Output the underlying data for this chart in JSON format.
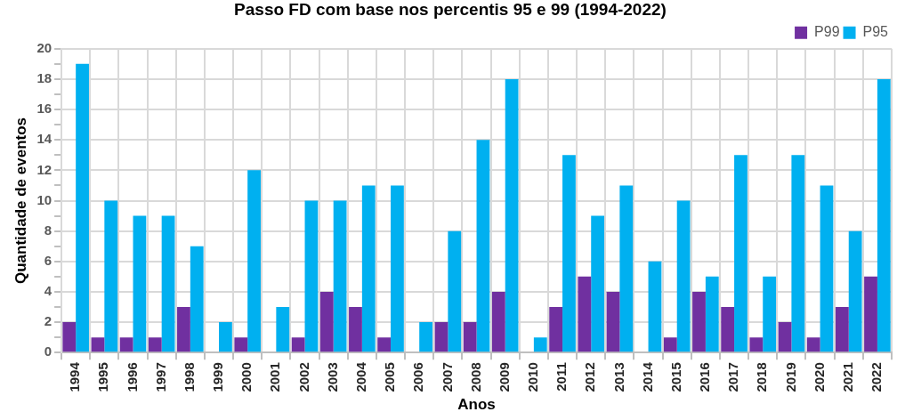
{
  "chart_data": {
    "type": "bar",
    "title": "Passo FD com base nos percentis 95 e 99 (1994-2022)",
    "xlabel": "Anos",
    "ylabel": "Quantidade de eventos",
    "categories": [
      "1994",
      "1995",
      "1996",
      "1997",
      "1998",
      "1999",
      "2000",
      "2001",
      "2002",
      "2003",
      "2004",
      "2005",
      "2006",
      "2007",
      "2008",
      "2009",
      "2010",
      "2011",
      "2012",
      "2013",
      "2014",
      "2015",
      "2016",
      "2017",
      "2018",
      "2019",
      "2020",
      "2021",
      "2022"
    ],
    "series": [
      {
        "name": "P99",
        "color": "#7030a0",
        "values": [
          2,
          1,
          1,
          1,
          3,
          0,
          1,
          0,
          1,
          4,
          3,
          1,
          0,
          2,
          2,
          4,
          0,
          3,
          5,
          4,
          0,
          1,
          4,
          3,
          1,
          2,
          1,
          3,
          5
        ]
      },
      {
        "name": "P95",
        "color": "#00b0f0",
        "values": [
          19,
          10,
          9,
          9,
          7,
          2,
          12,
          3,
          10,
          10,
          11,
          11,
          2,
          8,
          14,
          18,
          1,
          13,
          9,
          11,
          6,
          10,
          5,
          13,
          5,
          13,
          11,
          8,
          18
        ]
      }
    ],
    "ylim": [
      0,
      20
    ],
    "yticks": [
      0,
      {
        "value": 1,
        "label": null
      },
      2,
      {
        "value": 3,
        "label": null
      },
      4,
      {
        "value": 5,
        "label": null
      },
      6,
      {
        "value": 7,
        "label": null
      },
      8,
      {
        "value": 9,
        "label": null
      },
      10,
      {
        "value": 11,
        "label": null
      },
      12,
      {
        "value": 13,
        "label": null
      },
      14,
      {
        "value": 15,
        "label": null
      },
      16,
      {
        "value": 17,
        "label": null
      },
      18,
      {
        "value": 19,
        "label": null
      },
      20
    ],
    "grid": true,
    "legend": "top right"
  }
}
